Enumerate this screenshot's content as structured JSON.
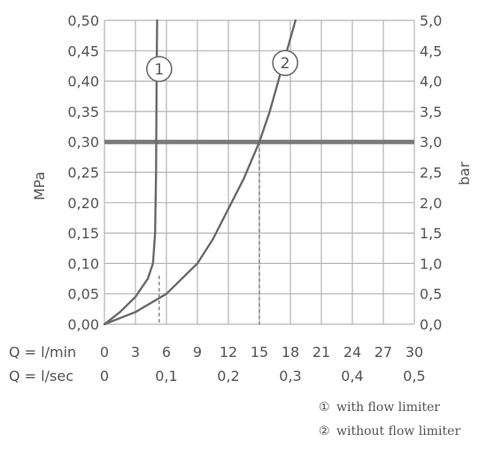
{
  "chart_data": {
    "type": "line",
    "ylabel_left": "MPa",
    "ylabel_right": "bar",
    "x_row_labels": [
      "Q = l/min",
      "Q = l/sec"
    ],
    "xlim": [
      0,
      30
    ],
    "ylim": [
      0,
      0.5
    ],
    "x_ticks_lmin": [
      "0",
      "3",
      "6",
      "9",
      "12",
      "15",
      "18",
      "21",
      "24",
      "27",
      "30"
    ],
    "x_ticks_lsec": [
      {
        "value": 0,
        "label": "0"
      },
      {
        "value": 6,
        "label": "0,1"
      },
      {
        "value": 12,
        "label": "0,2"
      },
      {
        "value": 18,
        "label": "0,3"
      },
      {
        "value": 24,
        "label": "0,4"
      },
      {
        "value": 30,
        "label": "0,5"
      }
    ],
    "y_ticks_left": [
      "0,00",
      "0,05",
      "0,10",
      "0,15",
      "0,20",
      "0,25",
      "0,30",
      "0,35",
      "0,40",
      "0,45",
      "0,50"
    ],
    "y_ticks_right": [
      "0,0",
      "0,5",
      "1,0",
      "1,5",
      "2,0",
      "2,5",
      "3,0",
      "3,5",
      "4,0",
      "4,5",
      "5,0"
    ],
    "grid": true,
    "reference_line": {
      "y": 0.3
    },
    "drop_lines": [
      {
        "x": 5.3,
        "y": 0.08
      },
      {
        "x": 15,
        "y": 0.3
      }
    ],
    "series": [
      {
        "id": "1",
        "marker": "1",
        "x": [
          0,
          1.5,
          3,
          4.2,
          4.7,
          4.9,
          5.0,
          5.05,
          5.1
        ],
        "y": [
          0,
          0.02,
          0.045,
          0.075,
          0.1,
          0.15,
          0.25,
          0.4,
          0.5
        ],
        "label_position": [
          5.3,
          0.42
        ]
      },
      {
        "id": "2",
        "marker": "2",
        "x": [
          0,
          3,
          6,
          9,
          10.5,
          12,
          13.5,
          15,
          16,
          17,
          18,
          18.5
        ],
        "y": [
          0,
          0.02,
          0.05,
          0.1,
          0.14,
          0.19,
          0.24,
          0.3,
          0.35,
          0.41,
          0.47,
          0.5
        ],
        "label_position": [
          17.5,
          0.43
        ]
      }
    ],
    "legend": [
      {
        "symbol": "①",
        "text": "with flow limiter"
      },
      {
        "symbol": "②",
        "text": "without flow limiter"
      }
    ],
    "colors": {
      "grid": "#b4b4b4",
      "curve": "#6a6a6a",
      "reference": "#7a7a7a",
      "text": "#555555"
    }
  }
}
